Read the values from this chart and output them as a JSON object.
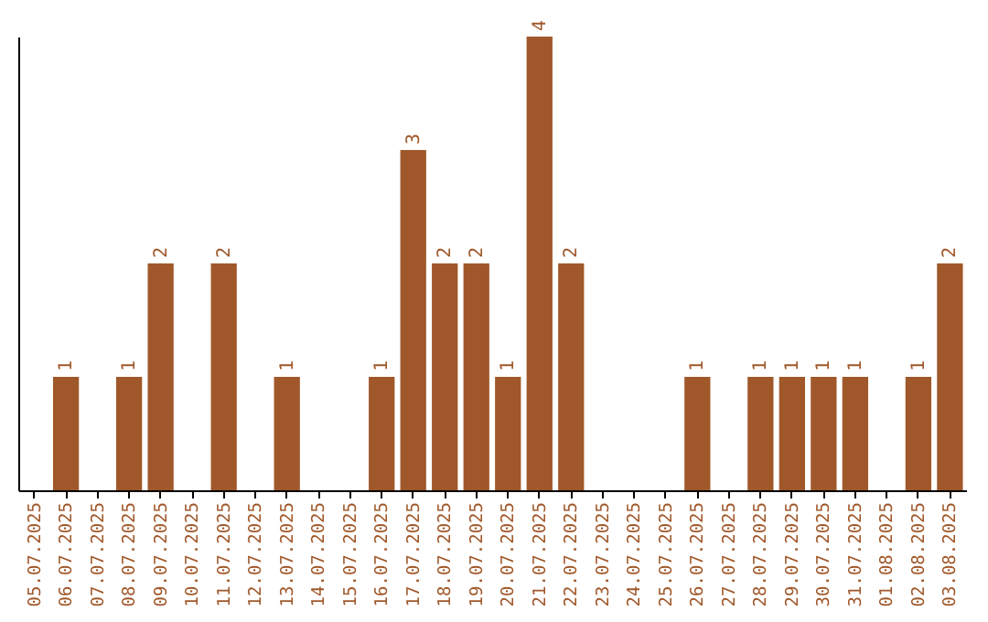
{
  "chart_data": {
    "type": "bar",
    "categories": [
      "05.07.2025",
      "06.07.2025",
      "07.07.2025",
      "08.07.2025",
      "09.07.2025",
      "10.07.2025",
      "11.07.2025",
      "12.07.2025",
      "13.07.2025",
      "14.07.2025",
      "15.07.2025",
      "16.07.2025",
      "17.07.2025",
      "18.07.2025",
      "19.07.2025",
      "20.07.2025",
      "21.07.2025",
      "22.07.2025",
      "23.07.2025",
      "24.07.2025",
      "25.07.2025",
      "26.07.2025",
      "27.07.2025",
      "28.07.2025",
      "29.07.2025",
      "30.07.2025",
      "31.07.2025",
      "01.08.2025",
      "02.08.2025",
      "03.08.2025"
    ],
    "values": [
      0,
      1,
      0,
      1,
      2,
      0,
      2,
      0,
      1,
      0,
      0,
      1,
      3,
      2,
      2,
      1,
      4,
      2,
      0,
      0,
      0,
      1,
      0,
      1,
      1,
      1,
      1,
      0,
      1,
      2
    ],
    "value_labels": [
      null,
      "1",
      null,
      "1",
      "2",
      null,
      "2",
      null,
      "1",
      null,
      null,
      "1",
      "3",
      "2",
      "2",
      "1",
      "4",
      "2",
      null,
      null,
      null,
      "1",
      null,
      "1",
      "1",
      "1",
      "1",
      null,
      "1",
      "2"
    ],
    "color": "#a0582a",
    "relative": false,
    "grid": false,
    "tick_labels": "x"
  }
}
